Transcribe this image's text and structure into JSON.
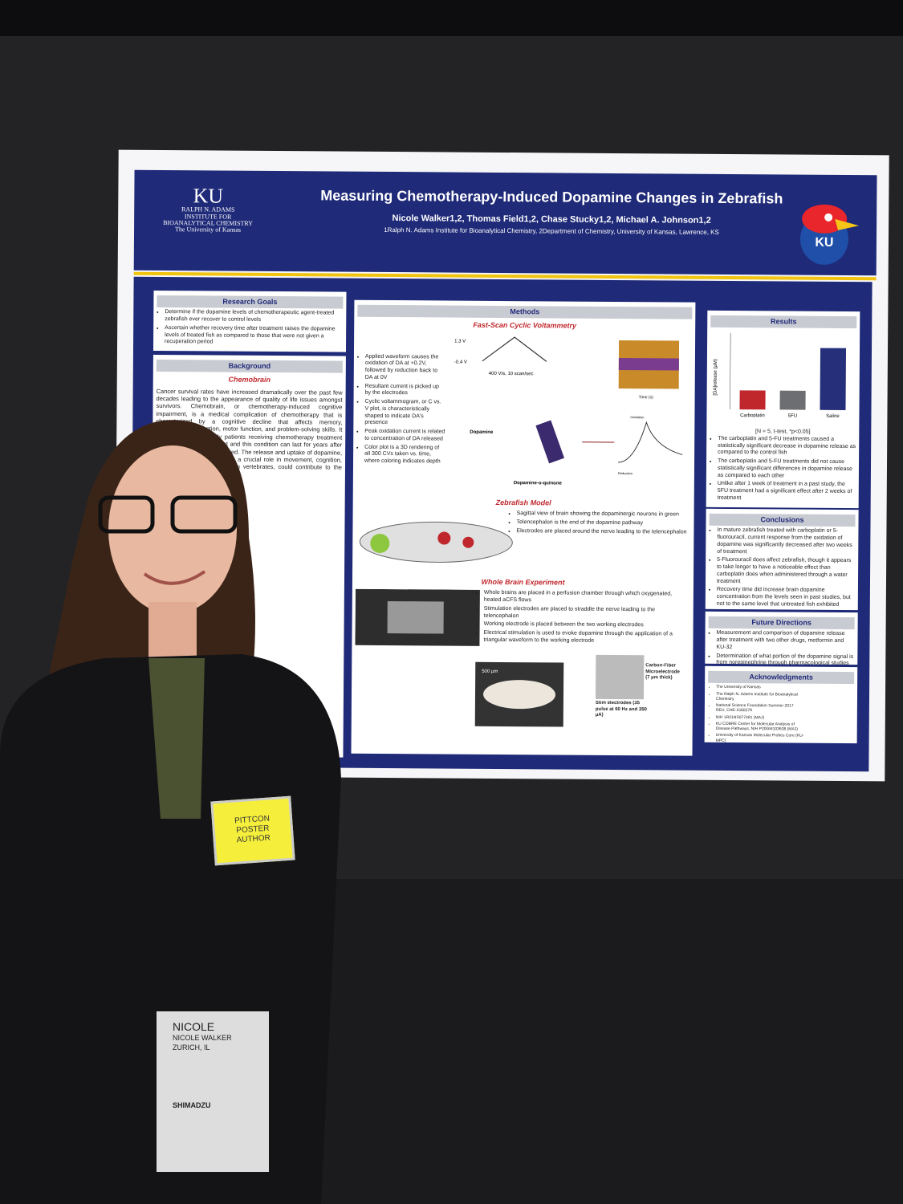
{
  "poster": {
    "logo": [
      "KU",
      "RALPH N. ADAMS",
      "INSTITUTE FOR",
      "BIOANALYTICAL CHEMISTRY",
      "The University of Kansas"
    ],
    "title": "Measuring Chemotherapy-Induced Dopamine Changes in Zebrafish",
    "authors": "Nicole Walker1,2, Thomas Field1,2, Chase Stucky1,2, Michael A. Johnson1,2",
    "affiliations": "1Ralph N. Adams Institute for Bioanalytical Chemistry, 2Department of Chemistry, University of Kansas, Lawrence, KS",
    "mascot": "KU",
    "research_goals": {
      "heading": "Research Goals",
      "bullets": [
        "Determine if the dopamine levels of chemotherapeutic agent-treated zebrafish ever recover to control levels",
        "Ascertain whether recovery time after treatment raises the dopamine levels of treated fish as compared to those that were not given a recuperation period"
      ]
    },
    "background": {
      "heading": "Background",
      "subheading": "Chemobrain",
      "text": "Cancer survival rates have increased dramatically over the past few decades leading to the appearance of quality of life issues amongst survivors. Chemobrain, or chemotherapy-induced cognitive impairment, is a medical complication of chemotherapy that is characterized by a cognitive decline that affects memory, concentration, attention, motor function, and problem-solving skills. It is estimated that nearly patients receiving chemotherapy treatment will experience impairment and this condition can last for years after treatment has been completed. The release and uptake of dopamine, a neurotransmitter that plays a crucial role in movement, cognition, and reward-based behavior in vertebrates, could contribute to the symptoms of chemobrain."
    },
    "methods": {
      "heading": "Methods",
      "fscv": {
        "heading": "Fast-Scan Cyclic Voltammetry",
        "bullets": [
          "Applied waveform causes the oxidation of DA at +0.2V, followed by reduction back to DA at 0V",
          "Resultant current is picked up by the electrodes",
          "Cyclic voltammogram, or C vs. V plot, is characteristically shaped to indicate DA's presence",
          "Peak oxidation current is related to concentration of DA released",
          "Color plot is a 3D rendering of all 300 CVs taken vs. time, where coloring indicates depth"
        ],
        "labels": [
          "1.3 V",
          "-0.4 V",
          "400 V/s, 10 scan/sec",
          "Dopamine",
          "Dopamine-o-quinone",
          "Time (s)",
          "Oxidation",
          "Reduction"
        ]
      },
      "zebrafish": {
        "heading": "Zebrafish Model",
        "bullets": [
          "Sagittal view of brain showing the dopaminergic neurons in green",
          "Telencephalon is the end of the dopamine pathway",
          "Electrodes are placed around the nerve leading to the telencephalon"
        ]
      },
      "whole_brain": {
        "heading": "Whole Brain Experiment",
        "bullets": [
          "Whole brains are placed in a perfusion chamber through which oxygenated, heated aCFS flows",
          "Stimulation electrodes are placed to straddle the nerve leading to the telencephalon",
          "Working electrode is placed between the two working electrodes",
          "Electrical stimulation is used to evoke dopamine through the application of a triangular waveform to the working electrode"
        ],
        "labels": [
          "500 µm",
          "Stim electrodes (35 pulse at 60 Hz and 350 µA)",
          "Carbon-Fiber Microelectrode (7 µm thick)"
        ]
      }
    },
    "results": {
      "heading": "Results",
      "chart_data": {
        "type": "bar",
        "ylabel": "[DA]release (µM)",
        "categories": [
          "Carboplatin",
          "5FU",
          "Saline"
        ],
        "values": [
          0.4,
          0.4,
          1.3
        ],
        "colors": [
          "#c0272d",
          "#6d6e71",
          "#262f7a"
        ],
        "ylim": [
          0,
          1.6
        ],
        "note": "[N = 5, t-test, *p<0.05]"
      },
      "bullets": [
        "The carboplatin and 5-FU treatments caused a statistically significant decrease in dopamine release as compared to the control fish",
        "The carboplatin and 5-FU treatments did not cause statistically significant differences in dopamine release as compared to each other",
        "Unlike after 1 week of treatment in a past study, the 5FU treatment had a significant effect after 2 weeks of treatment"
      ]
    },
    "conclusions": {
      "heading": "Conclusions",
      "bullets": [
        "In mature zebrafish treated with carboplatin or 5-fluorouracil, current response from the oxidation of dopamine was significantly decreased after two weeks of treatment",
        "5-Fluorouracil does affect zebrafish, though it appears to take longer to have a noticeable effect than carboplatin does when administered through a water treatment",
        "Recovery time did increase brain dopamine concentration from the levels seen in past studies, but not to the same level that untreated fish exhibited",
        "Carboplatin and 5-FU have similar effects on brain dopamine concentration"
      ]
    },
    "future": {
      "heading": "Future Directions",
      "bullets": [
        "Measurement and comparison of dopamine release after treatment with two other drugs, metformin and KU-32",
        "Determination of what portion of the dopamine signal is from norepinephrine through pharmacological studies"
      ]
    },
    "acknowledgments": {
      "heading": "Acknowledgments",
      "items": [
        "The University of Kansas",
        "The Ralph N. Adams Institute for Bioanalytical Chemistry",
        "National Science Foundation Summer 2017 REU, CHE-1560279",
        "NIH 1R21NS077481 (MAJ)",
        "KU COBRE Center for Molecular Analysis of Disease Pathways, NIH P20GM103638 (MAJ)",
        "University of Kansas Molecular Probes Core (KU-MPC)"
      ]
    }
  },
  "badge": {
    "lines": [
      "PITTCON",
      "POSTER",
      "AUTHOR"
    ]
  },
  "lanyard": [
    "NICOLE",
    "NICOLE WALKER",
    "ZURICH, IL",
    "SHIMADZU"
  ]
}
